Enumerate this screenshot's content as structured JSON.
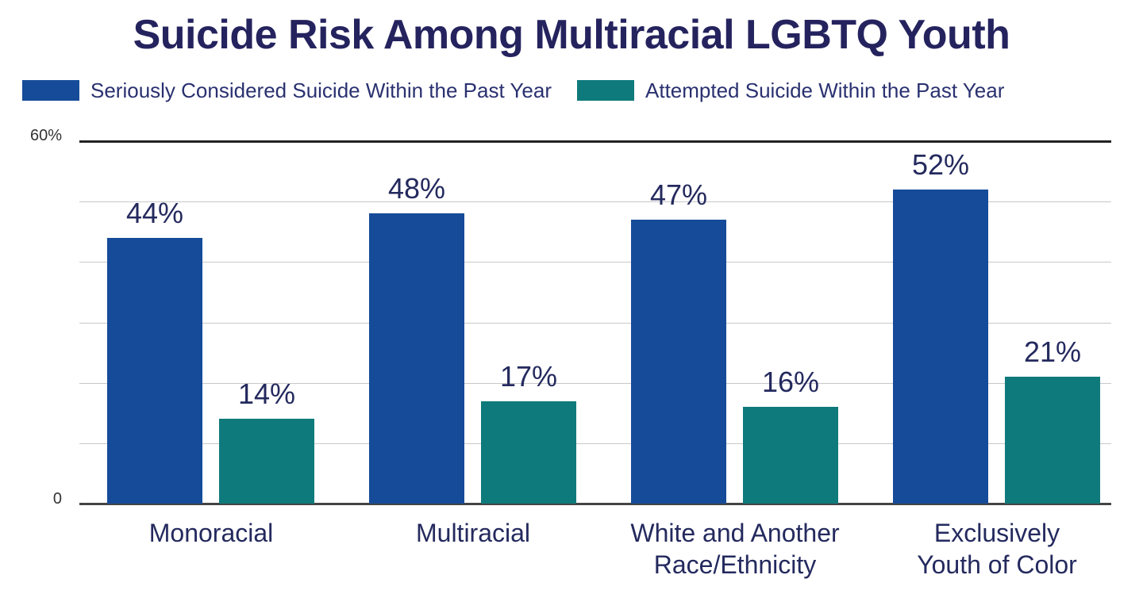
{
  "title": "Suicide Risk Among Multiracial LGBTQ Youth",
  "legend": [
    {
      "label": "Seriously Considered Suicide Within the Past Year",
      "color": "#154b99"
    },
    {
      "label": "Attempted Suicide Within the Past Year",
      "color": "#0f7a7b"
    }
  ],
  "y_axis": {
    "top_label": "60%",
    "bottom_label": "0"
  },
  "categories": [
    {
      "line1": "Monoracial",
      "line2": ""
    },
    {
      "line1": "Multiracial",
      "line2": ""
    },
    {
      "line1": "White and Another",
      "line2": "Race/Ethnicity"
    },
    {
      "line1": "Exclusively",
      "line2": "Youth of Color"
    }
  ],
  "bar_labels": {
    "considered": [
      "44%",
      "48%",
      "47%",
      "52%"
    ],
    "attempted": [
      "14%",
      "17%",
      "16%",
      "21%"
    ]
  },
  "chart_data": {
    "type": "bar",
    "title": "Suicide Risk Among Multiracial LGBTQ Youth",
    "categories": [
      "Monoracial",
      "Multiracial",
      "White and Another Race/Ethnicity",
      "Exclusively Youth of Color"
    ],
    "series": [
      {
        "name": "Seriously Considered Suicide Within the Past Year",
        "values": [
          44,
          48,
          47,
          52
        ],
        "color": "#154b99"
      },
      {
        "name": "Attempted Suicide Within the Past Year",
        "values": [
          14,
          17,
          16,
          21
        ],
        "color": "#0f7a7b"
      }
    ],
    "xlabel": "",
    "ylabel": "",
    "ylim": [
      0,
      60
    ],
    "yticks_labeled": [
      "0",
      "60%"
    ],
    "grid": true,
    "grid_step": 10,
    "legend_position": "top"
  }
}
